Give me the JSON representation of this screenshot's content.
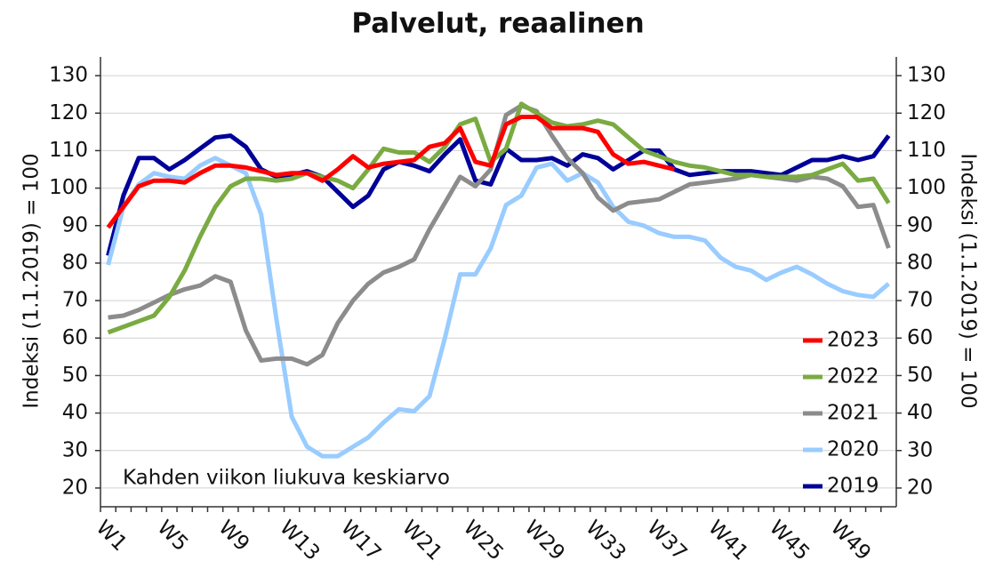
{
  "chart_data": {
    "type": "line",
    "title": "Palvelut, reaalinen",
    "y_label": "Indeksi (1.1.2019) = 100",
    "y2_label": "Indeksi (1.1.2019) = 100",
    "annotation": "Kahden viikon liukuva keskiarvo",
    "categories": [
      "W1",
      null,
      null,
      null,
      "W5",
      null,
      null,
      null,
      "W9",
      null,
      null,
      null,
      "W13",
      null,
      null,
      null,
      "W17",
      null,
      null,
      null,
      "W21",
      null,
      null,
      null,
      "W25",
      null,
      null,
      null,
      "W29",
      null,
      null,
      null,
      "W33",
      null,
      null,
      null,
      "W37",
      null,
      null,
      null,
      "W41",
      null,
      null,
      null,
      "W45",
      null,
      null,
      null,
      "W49",
      null,
      null,
      null
    ],
    "ylim": [
      15,
      135
    ],
    "yticks": [
      20,
      30,
      40,
      50,
      60,
      70,
      80,
      90,
      100,
      110,
      120,
      130
    ],
    "y2lim": [
      15,
      135
    ],
    "y2ticks": [
      20,
      30,
      40,
      50,
      60,
      70,
      80,
      90,
      100,
      110,
      120,
      130
    ],
    "grid": true,
    "legend": "lower right",
    "series": [
      {
        "name": "2023",
        "color": "#ff0000",
        "values": [
          89.5,
          95,
          100.5,
          102,
          102,
          101.5,
          104,
          106,
          106,
          105.5,
          104.5,
          103.5,
          104,
          104,
          102,
          105,
          108.5,
          105.5,
          106.5,
          107,
          107.5,
          111,
          112,
          116,
          107,
          106,
          117,
          119,
          119,
          116,
          116,
          116,
          115,
          109,
          106.5,
          107,
          106,
          105,
          null,
          null,
          null,
          null,
          null,
          null,
          null,
          null,
          null,
          null,
          null,
          null,
          null,
          null
        ]
      },
      {
        "name": "2022",
        "color": "#7aab42",
        "values": [
          61.5,
          63,
          64.5,
          66,
          71,
          78,
          87,
          95,
          100.5,
          102.5,
          102.5,
          102,
          102.5,
          104,
          103,
          102,
          100,
          105,
          110.5,
          109.5,
          109.5,
          107,
          111,
          117,
          118.5,
          107,
          110.5,
          122.5,
          120,
          117.5,
          116.5,
          117,
          118,
          117,
          113.5,
          110,
          108.5,
          107,
          106,
          105.5,
          104.5,
          103.5,
          103.5,
          103,
          103,
          103,
          103.5,
          105,
          106.5,
          102,
          102.5,
          96
        ]
      },
      {
        "name": "2021",
        "color": "#8c8c8c",
        "values": [
          65.5,
          66,
          67.5,
          69.5,
          71.5,
          73,
          74,
          76.5,
          75,
          62,
          54,
          54.5,
          54.5,
          53,
          55.5,
          64,
          70,
          74.5,
          77.5,
          79,
          81,
          89,
          96,
          103,
          100.5,
          105,
          119.5,
          122,
          120.5,
          114,
          108,
          104,
          97.5,
          94,
          96,
          96.5,
          97,
          99,
          101,
          101.5,
          102,
          102.5,
          103.5,
          103,
          102.5,
          102,
          103,
          102.5,
          100.5,
          95,
          95.5,
          84
        ]
      },
      {
        "name": "2020",
        "color": "#99ccff",
        "values": [
          79.5,
          95,
          101,
          104,
          103,
          102.5,
          106,
          108,
          106,
          104,
          93,
          65,
          39,
          31,
          28.5,
          28.5,
          31,
          33.5,
          37.5,
          41,
          40.5,
          44.5,
          60,
          77,
          77,
          84,
          95.5,
          98,
          105.5,
          106.5,
          102,
          104,
          101.5,
          95,
          91,
          90,
          88,
          87,
          87,
          86,
          81.5,
          79,
          78,
          75.5,
          77.5,
          79,
          77,
          74.5,
          72.5,
          71.5,
          71,
          74.5
        ]
      },
      {
        "name": "2019",
        "color": "#000099",
        "values": [
          82,
          98,
          108,
          108,
          105,
          107.5,
          110.5,
          113.5,
          114,
          111,
          105,
          103,
          103.5,
          104.5,
          103,
          99,
          95,
          98,
          105,
          107,
          106,
          104.5,
          109,
          113,
          102,
          101,
          110.5,
          107.5,
          107.5,
          108,
          106,
          109,
          108,
          105,
          107.5,
          110,
          110,
          105,
          103.5,
          104,
          104.5,
          104.5,
          104.5,
          104,
          103.5,
          105.5,
          107.5,
          107.5,
          108.5,
          107.5,
          108.5,
          114
        ]
      }
    ]
  }
}
